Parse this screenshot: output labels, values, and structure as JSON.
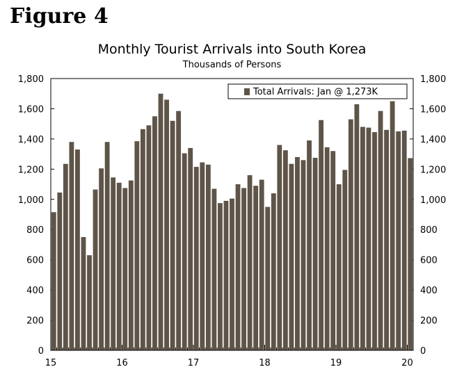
{
  "figure_label": "Figure 4",
  "chart_data": {
    "type": "bar",
    "title": "Monthly Tourist Arrivals into South Korea",
    "subtitle": "Thousands of Persons",
    "xlabel": "",
    "ylabel": "",
    "ylim": [
      0,
      1800
    ],
    "y_ticks": [
      "0",
      "200",
      "400",
      "600",
      "800",
      "1,000",
      "1,200",
      "1,400",
      "1,600",
      "1,800"
    ],
    "x_tick_labels": [
      "15",
      "16",
      "17",
      "18",
      "19",
      "20"
    ],
    "legend_position": "top-right",
    "grid": false,
    "bar_color": "#5e5448",
    "series": [
      {
        "name": "Total Arrivals: Jan @ 1,273K",
        "start": "2015-01",
        "values": [
          915,
          1045,
          1235,
          1380,
          1330,
          750,
          630,
          1065,
          1205,
          1380,
          1145,
          1110,
          1075,
          1125,
          1385,
          1465,
          1490,
          1550,
          1700,
          1660,
          1520,
          1585,
          1305,
          1340,
          1215,
          1245,
          1230,
          1070,
          975,
          990,
          1005,
          1100,
          1075,
          1160,
          1090,
          1130,
          950,
          1040,
          1360,
          1325,
          1235,
          1280,
          1260,
          1390,
          1275,
          1525,
          1345,
          1320,
          1100,
          1195,
          1530,
          1630,
          1480,
          1475,
          1445,
          1585,
          1460,
          1650,
          1450,
          1455,
          1273
        ]
      }
    ]
  }
}
